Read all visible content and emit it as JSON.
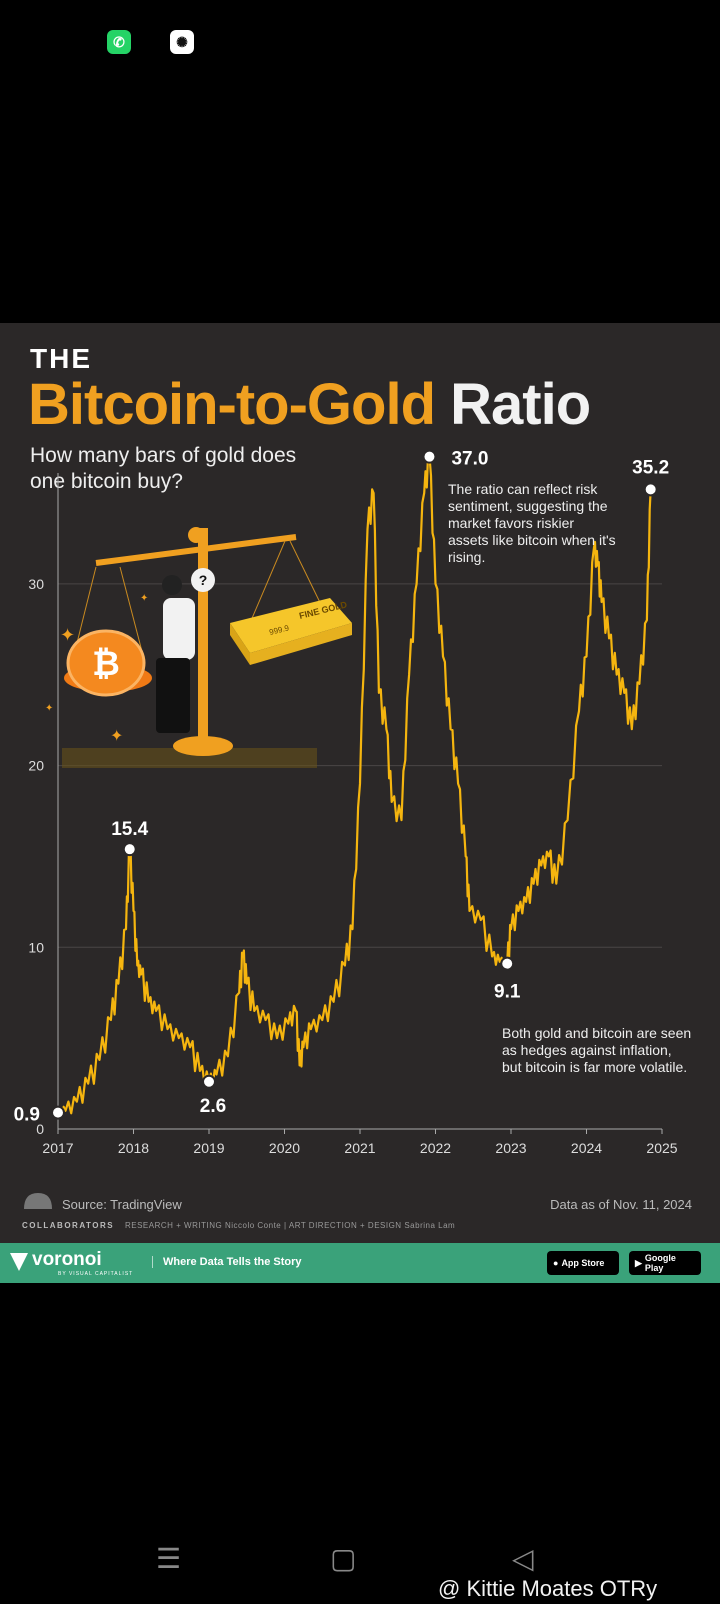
{
  "status_bar": {
    "app_icons": [
      "whatsapp-icon",
      "chatgpt-icon"
    ]
  },
  "infographic": {
    "kicker": "THE",
    "headline_gold": "Bitcoin-to-Gold",
    "headline_white": "Ratio",
    "subtitle": "How many bars of gold does one bitcoin buy?",
    "annotation_peak": "The ratio can reflect risk sentiment, suggesting the market favors riskier assets like bitcoin when it's rising.",
    "annotation_low": "Both gold and bitcoin are seen as hedges against inflation, but bitcoin is far more volatile.",
    "source": "Source: TradingView",
    "data_as_of": "Data as of Nov. 11, 2024",
    "collaborators_label": "COLLABORATORS",
    "research_label": "RESEARCH + WRITING",
    "research_name": "Niccolo Conte",
    "art_label": "ART DIRECTION + DESIGN",
    "art_name": "Sabrina Lam",
    "illustration_gold_text": "FINE GOLD",
    "illustration_gold_purity": "999.9",
    "illustration_question": "?",
    "colors": {
      "background": "#2b2828",
      "accent": "#f0a020",
      "line": "#f5b50f",
      "footer": "#3aa27a"
    }
  },
  "footer": {
    "brand": "voronoi",
    "brand_sub": "BY VISUAL CAPITALIST",
    "tagline": "Where Data Tells the Story",
    "app_store": "App Store",
    "google_play": "Google Play"
  },
  "chart_data": {
    "type": "line",
    "title": "The Bitcoin-to-Gold Ratio",
    "subtitle": "How many bars of gold does one bitcoin buy?",
    "xlabel": "",
    "ylabel": "",
    "xlim": [
      2017,
      2025
    ],
    "ylim": [
      0,
      35
    ],
    "x_ticks": [
      "2017",
      "2018",
      "2019",
      "2020",
      "2021",
      "2022",
      "2023",
      "2024",
      "2025"
    ],
    "y_ticks": [
      "0",
      "10",
      "20",
      "30"
    ],
    "series": [
      {
        "name": "Bitcoin-to-Gold Ratio",
        "x": [
          2017.0,
          2017.1,
          2017.25,
          2017.4,
          2017.55,
          2017.7,
          2017.8,
          2017.9,
          2017.95,
          2018.0,
          2018.05,
          2018.1,
          2018.2,
          2018.3,
          2018.45,
          2018.6,
          2018.75,
          2018.88,
          2019.0,
          2019.1,
          2019.25,
          2019.4,
          2019.45,
          2019.5,
          2019.6,
          2019.75,
          2019.9,
          2020.05,
          2020.15,
          2020.2,
          2020.25,
          2020.35,
          2020.5,
          2020.65,
          2020.8,
          2020.9,
          2021.0,
          2021.1,
          2021.18,
          2021.25,
          2021.35,
          2021.42,
          2021.55,
          2021.65,
          2021.75,
          2021.85,
          2021.92,
          2022.0,
          2022.1,
          2022.2,
          2022.3,
          2022.4,
          2022.45,
          2022.6,
          2022.75,
          2022.85,
          2022.95,
          2023.0,
          2023.1,
          2023.2,
          2023.3,
          2023.4,
          2023.5,
          2023.6,
          2023.75,
          2023.9,
          2024.0,
          2024.1,
          2024.15,
          2024.2,
          2024.3,
          2024.4,
          2024.5,
          2024.6,
          2024.7,
          2024.8,
          2024.85
        ],
        "values": [
          0.9,
          1.0,
          1.5,
          2.5,
          3.8,
          6.0,
          8.0,
          11.0,
          15.4,
          12.0,
          9.0,
          8.5,
          7.0,
          6.5,
          5.5,
          5.0,
          4.5,
          3.2,
          2.6,
          3.0,
          4.0,
          7.5,
          9.5,
          8.0,
          6.5,
          6.0,
          5.0,
          5.8,
          6.5,
          3.5,
          4.5,
          5.5,
          6.0,
          7.0,
          9.0,
          11.0,
          19.0,
          33.0,
          35.0,
          24.0,
          22.0,
          18.0,
          17.0,
          25.0,
          30.0,
          35.0,
          37.0,
          30.0,
          26.0,
          22.0,
          19.0,
          15.0,
          12.0,
          11.5,
          9.5,
          9.2,
          9.1,
          11.0,
          12.0,
          12.5,
          13.5,
          14.5,
          15.0,
          13.5,
          17.0,
          23.0,
          26.0,
          32.0,
          31.0,
          29.0,
          27.0,
          25.0,
          24.0,
          22.0,
          24.5,
          28.0,
          35.2
        ]
      }
    ],
    "annotations": [
      {
        "x": 2017.0,
        "y": 0.9,
        "label": "0.9"
      },
      {
        "x": 2017.95,
        "y": 15.4,
        "label": "15.4"
      },
      {
        "x": 2019.0,
        "y": 2.6,
        "label": "2.6"
      },
      {
        "x": 2021.92,
        "y": 37.0,
        "label": "37.0"
      },
      {
        "x": 2022.95,
        "y": 9.1,
        "label": "9.1"
      },
      {
        "x": 2024.85,
        "y": 35.2,
        "label": "35.2"
      }
    ],
    "grid": true,
    "legend": "none"
  },
  "nav": {
    "buttons": [
      "menu",
      "home",
      "back"
    ]
  },
  "watermark": "@ Kittie Moates OTRy"
}
